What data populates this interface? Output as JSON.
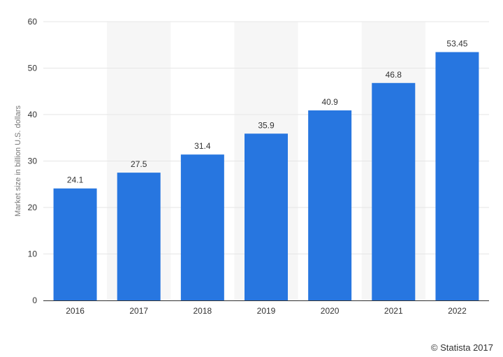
{
  "chart_data": {
    "type": "bar",
    "categories": [
      "2016",
      "2017",
      "2018",
      "2019",
      "2020",
      "2021",
      "2022"
    ],
    "values": [
      24.1,
      27.5,
      31.4,
      35.9,
      40.9,
      46.8,
      53.45
    ],
    "data_labels": [
      "24.1",
      "27.5",
      "31.4",
      "35.9",
      "40.9",
      "46.8",
      "53.45"
    ],
    "ylabel": "Market size in billion U.S. dollars",
    "ylim": [
      0,
      60
    ],
    "yticks": [
      0,
      10,
      20,
      30,
      40,
      50,
      60
    ],
    "grid": true,
    "bar_color": "#2776e0",
    "band_color": "#f6f6f6",
    "grid_color": "#e6e6e6"
  },
  "credit": "© Statista 2017"
}
